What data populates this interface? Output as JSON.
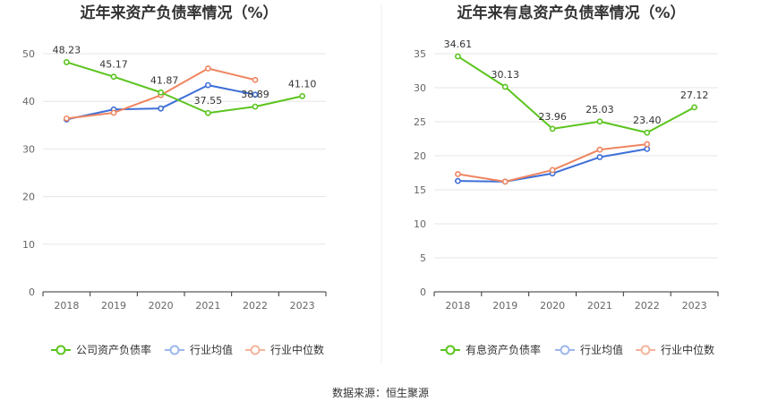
{
  "source_label": "数据来源：恒生聚源",
  "chart_data": [
    {
      "type": "line",
      "title": "近年来资产负债率情况（%）",
      "categories": [
        "2018",
        "2019",
        "2020",
        "2021",
        "2022",
        "2023"
      ],
      "ylim": [
        0,
        50
      ],
      "yticks": [
        "0",
        "10",
        "20",
        "30",
        "40",
        "50"
      ],
      "grid": true,
      "legend_position": "bottom",
      "series": [
        {
          "name": "公司资产负债率",
          "color": "#5bc41e",
          "values": [
            48.23,
            45.17,
            41.87,
            37.55,
            38.89,
            41.1
          ],
          "labels": [
            "48.23",
            "45.17",
            "41.87",
            "37.55",
            "38.89",
            "41.10"
          ]
        },
        {
          "name": "行业均值",
          "color": "#3d6fd8",
          "values": [
            36.2,
            38.3,
            38.5,
            43.4,
            41.4,
            null
          ]
        },
        {
          "name": "行业中位数",
          "color": "#ef8560",
          "values": [
            36.4,
            37.6,
            41.3,
            46.9,
            44.5,
            null
          ]
        }
      ]
    },
    {
      "type": "line",
      "title": "近年来有息资产负债率情况（%）",
      "categories": [
        "2018",
        "2019",
        "2020",
        "2021",
        "2022",
        "2023"
      ],
      "ylim": [
        0,
        35
      ],
      "yticks": [
        "0",
        "5",
        "10",
        "15",
        "20",
        "25",
        "30",
        "35"
      ],
      "grid": true,
      "legend_position": "bottom",
      "series": [
        {
          "name": "有息资产负债率",
          "color": "#5bc41e",
          "values": [
            34.61,
            30.13,
            23.96,
            25.03,
            23.4,
            27.12
          ],
          "labels": [
            "34.61",
            "30.13",
            "23.96",
            "25.03",
            "23.40",
            "27.12"
          ]
        },
        {
          "name": "行业均值",
          "color": "#3d6fd8",
          "values": [
            16.3,
            16.2,
            17.4,
            19.8,
            21.0,
            null
          ]
        },
        {
          "name": "行业中位数",
          "color": "#ef8560",
          "values": [
            17.3,
            16.2,
            17.9,
            20.9,
            21.7,
            null
          ]
        }
      ]
    }
  ]
}
